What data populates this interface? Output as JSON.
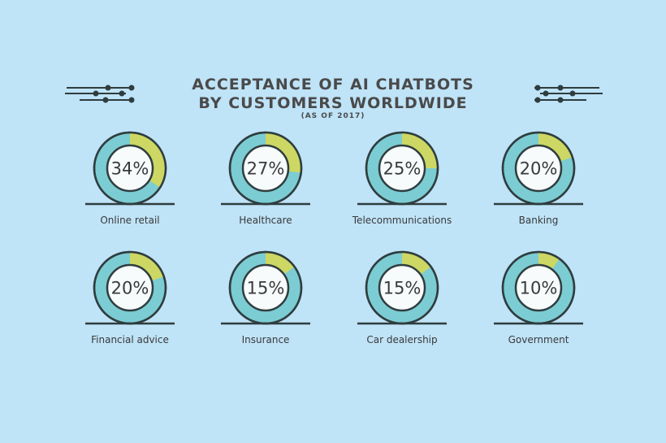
{
  "header": {
    "title_line1": "ACCEPTANCE OF AI CHATBOTS",
    "title_line2": "BY CUSTOMERS WORLDWIDE",
    "subtitle": "(AS OF 2017)"
  },
  "colors": {
    "background": "#bfe3f7",
    "ring_main": "#7cccd3",
    "ring_highlight": "#cdd763",
    "stroke": "#2f3d3f",
    "inner_fill": "#f7fbfc"
  },
  "chart_data": {
    "type": "pie",
    "title": "ACCEPTANCE OF AI CHATBOTS BY CUSTOMERS WORLDWIDE",
    "subtitle": "(AS OF 2017)",
    "categories": [
      "Online retail",
      "Healthcare",
      "Telecommunications",
      "Banking",
      "Financial advice",
      "Insurance",
      "Car dealership",
      "Government"
    ],
    "values": [
      34,
      27,
      25,
      20,
      20,
      15,
      15,
      10
    ],
    "value_labels": [
      "34%",
      "27%",
      "25%",
      "20%",
      "20%",
      "15%",
      "15%",
      "10%"
    ],
    "unit": "%"
  }
}
